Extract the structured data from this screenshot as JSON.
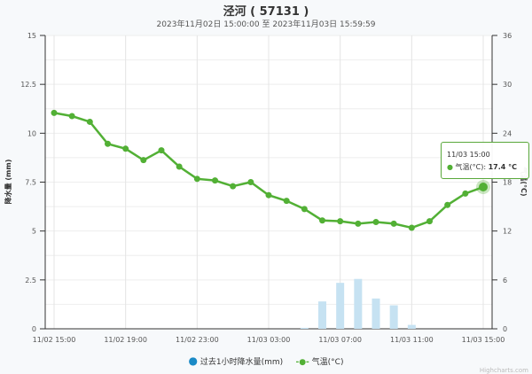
{
  "chart_data": {
    "type": "bar+line",
    "title": "泾河 ( 57131 )",
    "subtitle": "2023年11月02日 15:00:00 至 2023年11月03日 15:59:59",
    "categories": [
      "11/02 15:00",
      "11/02 16:00",
      "11/02 17:00",
      "11/02 18:00",
      "11/02 19:00",
      "11/02 20:00",
      "11/02 21:00",
      "11/02 22:00",
      "11/02 23:00",
      "11/03 00:00",
      "11/03 01:00",
      "11/03 02:00",
      "11/03 03:00",
      "11/03 04:00",
      "11/03 05:00",
      "11/03 06:00",
      "11/03 07:00",
      "11/03 08:00",
      "11/03 09:00",
      "11/03 10:00",
      "11/03 11:00",
      "11/03 12:00",
      "11/03 13:00",
      "11/03 14:00",
      "11/03 15:00"
    ],
    "x_tick_labels": [
      "11/02 15:00",
      "11/02 19:00",
      "11/02 23:00",
      "11/03 03:00",
      "11/03 07:00",
      "11/03 11:00",
      "11/03 15:00"
    ],
    "left_axis": {
      "label": "降水量 (mm)",
      "ylim": [
        0,
        15
      ],
      "ticks": [
        "0",
        "2.5",
        "5",
        "7.5",
        "10",
        "12.5",
        "15"
      ]
    },
    "right_axis": {
      "label": "气温(°C)",
      "ylim": [
        0,
        36
      ],
      "ticks": [
        "0",
        "6",
        "12",
        "18",
        "24",
        "30",
        "36"
      ]
    },
    "series": [
      {
        "name": "过去1小时降水量(mm)",
        "type": "bar",
        "color": "#c6e2f2",
        "legend_color": "#1a8ac6",
        "axis": "left",
        "values": [
          0,
          0,
          0,
          0,
          0,
          0,
          0,
          0,
          0,
          0,
          0,
          0,
          0,
          0,
          0.05,
          1.4,
          2.35,
          2.55,
          1.55,
          1.2,
          0.2,
          0,
          0,
          0,
          0
        ]
      },
      {
        "name": "气温(°C)",
        "type": "line",
        "color": "#52b035",
        "axis": "right",
        "values": [
          26.5,
          26.1,
          25.4,
          22.7,
          22.1,
          20.7,
          21.9,
          19.9,
          18.4,
          18.2,
          17.5,
          18.0,
          16.4,
          15.7,
          14.7,
          13.3,
          13.2,
          12.9,
          13.1,
          12.9,
          12.4,
          13.2,
          15.2,
          16.6,
          17.4
        ]
      }
    ],
    "tooltip": {
      "time": "11/03 15:00",
      "label": "气温(°C):",
      "value": "17.4 °C"
    },
    "grid": true,
    "legend": "bottom-center"
  },
  "credits": "Highcharts.com"
}
